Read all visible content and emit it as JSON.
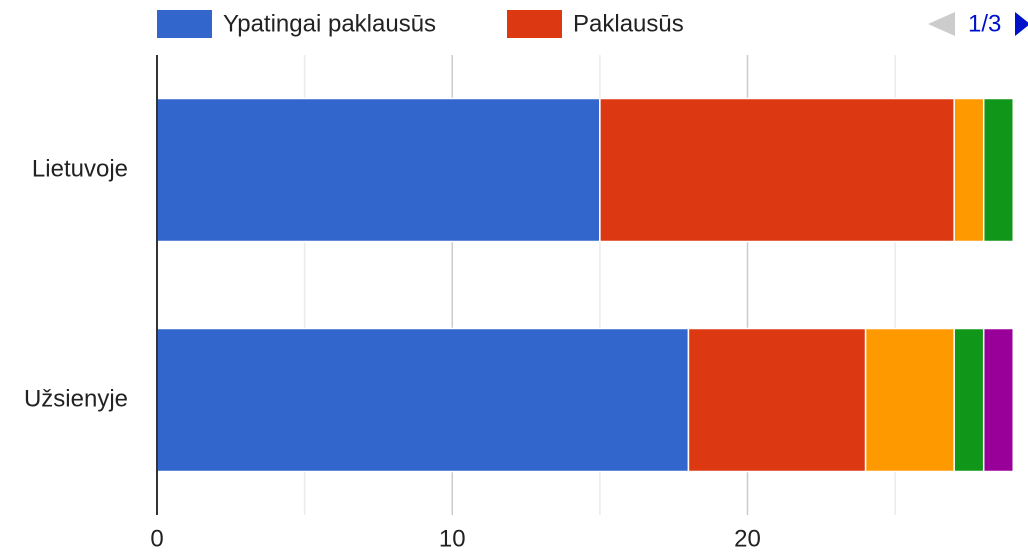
{
  "chart_data": {
    "type": "bar",
    "orientation": "horizontal",
    "stacked": true,
    "categories": [
      "Lietuvoje",
      "Užsienyje"
    ],
    "series": [
      {
        "name": "Ypatingai paklausūs",
        "color": "#3366cc",
        "values": [
          15,
          18
        ]
      },
      {
        "name": "Paklausūs",
        "color": "#dc3912",
        "values": [
          12,
          6
        ]
      },
      {
        "color": "#ff9900",
        "values": [
          1,
          3
        ]
      },
      {
        "color": "#109618",
        "values": [
          1,
          1
        ]
      },
      {
        "color": "#990099",
        "values": [
          0,
          1
        ]
      }
    ],
    "xlim": [
      0,
      29.5
    ],
    "xticks": [
      0,
      10,
      20
    ],
    "minor_xticks": [
      5,
      15,
      25
    ],
    "grid": true,
    "legend": "top",
    "legend_page": "1/3"
  }
}
